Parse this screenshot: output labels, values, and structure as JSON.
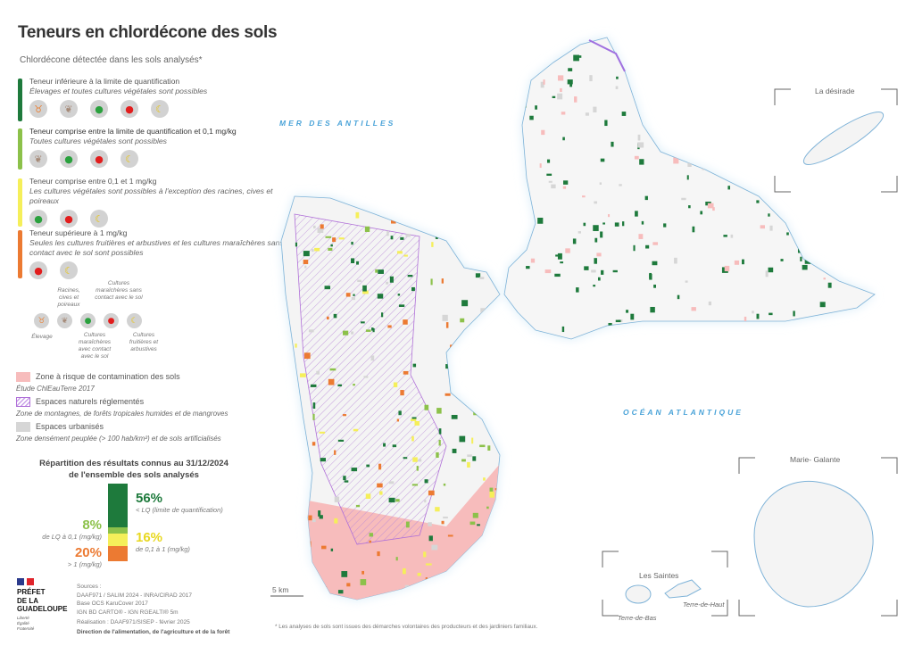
{
  "title": "Teneurs en chlordécone des sols",
  "subtitle": "Chlordécone détectée dans les sols analysés*",
  "classes": [
    {
      "label": "Teneur inférieure à la limite de quantification",
      "desc": "Élevages et toutes cultures végétales sont possibles",
      "color": "#1e7a3c",
      "icons": [
        "cattle-icon",
        "root-icon",
        "lettuce-icon",
        "tomato-icon",
        "banana-icon"
      ]
    },
    {
      "label": "Teneur comprise entre la limite de quantification et 0,1 mg/kg",
      "desc": "Toutes cultures végétales sont possibles",
      "color": "#8cc14a",
      "icons": [
        "root-icon",
        "lettuce-icon",
        "tomato-icon",
        "banana-icon"
      ]
    },
    {
      "label": "Teneur comprise entre 0,1 et 1 mg/kg",
      "desc": "Les cultures végétales sont possibles à l'exception des racines, cives et poireaux",
      "color": "#f5ef5a",
      "icons": [
        "lettuce-icon",
        "tomato-icon",
        "banana-icon"
      ]
    },
    {
      "label": "Teneur supérieure à 1 mg/kg",
      "desc": "Seules les cultures fruitières et arbustives et les cultures maraîchères sans contact avec le sol sont possibles",
      "color": "#ec7a32",
      "icons": [
        "tomato-icon",
        "banana-icon"
      ]
    }
  ],
  "icon_key": {
    "elevage": "Élevage",
    "racines": "Racines, cives et poireaux",
    "maraich_contact": "Cultures maraîchères avec contact avec le sol",
    "maraich_sans": "Cultures maraîchères sans contact avec le sol",
    "fruitieres": "Cultures fruitières et arbustives"
  },
  "layers": [
    {
      "label": "Zone à risque de contamination des sols",
      "desc": "Étude ChlEauTerre 2017",
      "color": "#f7bcbc"
    },
    {
      "label": "Espaces naturels réglementés",
      "desc": "Zone de montagnes, de forêts tropicales humides et de mangroves",
      "color": "#b070d8"
    },
    {
      "label": "Espaces urbanisés",
      "desc": "Zone densément peuplée (> 100 hab/km²) et de sols artificialisés",
      "color": "#d6d6d6"
    }
  ],
  "distribution": {
    "title": "Répartition des résultats connus au 31/12/2024",
    "title2": "de l'ensemble des sols analysés",
    "items": [
      {
        "pct": "56%",
        "value": 56,
        "label": "< LQ (limite de quantification)",
        "color": "#1e7a3c"
      },
      {
        "pct": "8%",
        "value": 8,
        "label": "de LQ à 0,1 (mg/kg)",
        "color": "#8cc14a"
      },
      {
        "pct": "16%",
        "value": 16,
        "label": "de 0,1 à 1 (mg/kg)",
        "color": "#f5ef5a"
      },
      {
        "pct": "20%",
        "value": 20,
        "label": "> 1 (mg/kg)",
        "color": "#ec7a32"
      }
    ]
  },
  "logo": {
    "line1": "PRÉFET",
    "line2": "DE LA",
    "line3": "GUADELOUPE",
    "motto": "Liberté Égalité Fraternité"
  },
  "sources": {
    "heading": "Sources :",
    "l1": "DAAF971 / SALIM 2024 - INRA/CIRAD 2017",
    "l2": "Base OCS KaruCover 2017",
    "l3": "IGN BD CARTO® - IGN RGEALTI® 5m",
    "realisation": "Réalisation : DAAF971/SISEP - février 2025",
    "direction": "Direction de l'alimentation, de l'agriculture et de la forêt"
  },
  "map": {
    "sea1": "MER DES ANTILLES",
    "sea2": "OCÉAN ATLANTIQUE",
    "scale": "5 km",
    "desirade": "La désirade",
    "marie_galante": "Marie- Galante",
    "saintes": "Les Saintes",
    "terre_haut": "Terre-de-Haut",
    "terre_bas": "Terre-de-Bas"
  },
  "footnote": "* Les analyses de sols sont issues des démarches volontaires des producteurs et des jardiniers familiaux."
}
